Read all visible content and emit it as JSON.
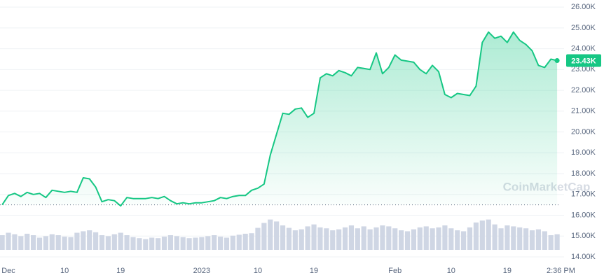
{
  "chart_data": {
    "type": "area",
    "color": "#16c784",
    "x": [
      -1,
      0,
      1,
      2,
      3,
      4,
      5,
      6,
      7,
      8,
      9,
      10,
      11,
      12,
      13,
      14,
      15,
      16,
      17,
      18,
      19,
      20,
      21,
      22,
      23,
      24,
      25,
      26,
      27,
      28,
      29,
      30,
      31,
      32,
      33,
      34,
      35,
      36,
      37,
      38,
      39,
      40,
      41,
      42,
      43,
      44,
      45,
      46,
      47,
      48,
      49,
      50,
      51,
      52,
      53,
      54,
      55,
      56,
      57,
      58,
      59,
      60,
      61,
      62,
      63,
      64,
      65,
      66,
      67,
      68,
      69,
      70,
      71,
      72,
      73,
      74,
      75,
      76,
      77,
      78,
      79,
      80,
      81,
      82,
      83,
      84,
      85,
      86,
      87,
      88
    ],
    "values": [
      16500,
      16950,
      17050,
      16900,
      17100,
      17000,
      17050,
      16850,
      17200,
      17150,
      17100,
      17150,
      17100,
      17800,
      17750,
      17350,
      16650,
      16750,
      16700,
      16450,
      16850,
      16800,
      16800,
      16800,
      16850,
      16800,
      16900,
      16700,
      16550,
      16600,
      16550,
      16600,
      16600,
      16650,
      16700,
      16850,
      16800,
      16900,
      16950,
      16950,
      17200,
      17300,
      17500,
      18900,
      19900,
      20900,
      20850,
      21100,
      21150,
      20700,
      20900,
      22600,
      22800,
      22700,
      22950,
      22850,
      22700,
      23100,
      23050,
      23000,
      23800,
      22800,
      23100,
      23700,
      23450,
      23400,
      23350,
      23000,
      22800,
      23200,
      22900,
      21800,
      21650,
      21850,
      21800,
      21750,
      22200,
      24300,
      24800,
      24500,
      24600,
      24300,
      24800,
      24400,
      24200,
      23900,
      23200,
      23100,
      23500,
      23430
    ],
    "last_price_label": "23.43K",
    "reference_line": 16500,
    "xlim": [
      -1.35,
      88.55
    ],
    "xticks": [
      {
        "value": 0,
        "label": "Dec"
      },
      {
        "value": 9,
        "label": "10"
      },
      {
        "value": 18,
        "label": "19"
      },
      {
        "value": 31,
        "label": "2023"
      },
      {
        "value": 40,
        "label": "10"
      },
      {
        "value": 49,
        "label": "19"
      },
      {
        "value": 62,
        "label": "Feb"
      },
      {
        "value": 71,
        "label": "10"
      },
      {
        "value": 80,
        "label": "19"
      },
      {
        "value": 88.6,
        "label": "2:36 PM"
      }
    ],
    "ylim": [
      12890,
      26340
    ],
    "yticks": [
      {
        "value": 14000,
        "label": "14.00K"
      },
      {
        "value": 15000,
        "label": "15.00K"
      },
      {
        "value": 16000,
        "label": "16.00K"
      },
      {
        "value": 17000,
        "label": "17.00K"
      },
      {
        "value": 18000,
        "label": "18.00K"
      },
      {
        "value": 19000,
        "label": "19.00K"
      },
      {
        "value": 20000,
        "label": "20.00K"
      },
      {
        "value": 21000,
        "label": "21.00K"
      },
      {
        "value": 22000,
        "label": "22.00K"
      },
      {
        "value": 23000,
        "label": "23.00K"
      },
      {
        "value": 24000,
        "label": "24.00K"
      },
      {
        "value": 25000,
        "label": "25.00K"
      },
      {
        "value": 26000,
        "label": "26.00K"
      }
    ],
    "grid": true,
    "watermark": "CoinMarketCap",
    "volume": {
      "color": "#cfd6e4",
      "ylim": [
        0,
        100
      ],
      "values": [
        30,
        35,
        32,
        28,
        33,
        30,
        25,
        28,
        32,
        30,
        27,
        26,
        35,
        38,
        40,
        36,
        30,
        28,
        32,
        35,
        30,
        26,
        24,
        22,
        25,
        24,
        27,
        30,
        28,
        26,
        24,
        25,
        26,
        28,
        30,
        27,
        25,
        29,
        31,
        33,
        34,
        45,
        55,
        62,
        58,
        50,
        45,
        40,
        42,
        48,
        52,
        46,
        44,
        40,
        42,
        46,
        50,
        44,
        48,
        42,
        46,
        50,
        48,
        44,
        40,
        38,
        42,
        46,
        48,
        44,
        46,
        50,
        44,
        40,
        38,
        46,
        56,
        60,
        62,
        52,
        44,
        50,
        48,
        46,
        44,
        40,
        42,
        38,
        30,
        32
      ]
    }
  }
}
